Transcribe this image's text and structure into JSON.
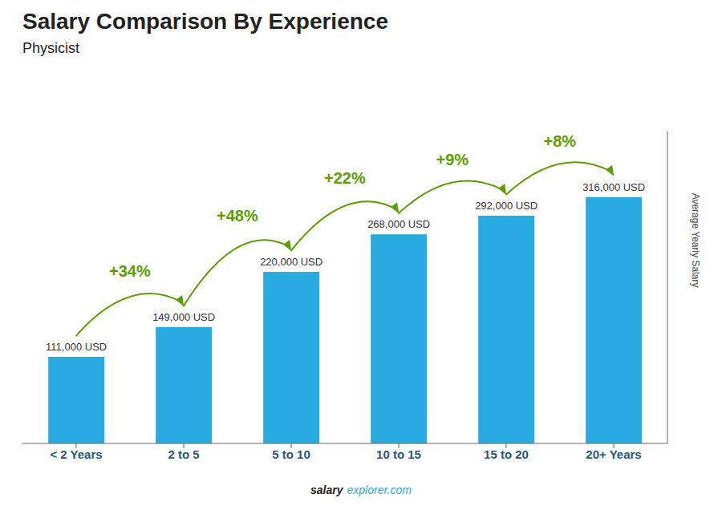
{
  "chart_data": {
    "type": "bar",
    "title": "Salary Comparison By Experience",
    "subtitle": "Physicist",
    "ylabel": "Average Yearly Salary",
    "categories": [
      "< 2 Years",
      "2 to 5",
      "5 to 10",
      "10 to 15",
      "15 to 20",
      "20+ Years"
    ],
    "values": [
      111000,
      149000,
      220000,
      268000,
      292000,
      316000
    ],
    "value_labels": [
      "111,000 USD",
      "149,000 USD",
      "220,000 USD",
      "268,000 USD",
      "292,000 USD",
      "316,000 USD"
    ],
    "data_labels": true,
    "annotations": [
      "+34%",
      "+48%",
      "+22%",
      "+9%",
      "+8%"
    ],
    "footer": [
      "salary",
      "explorer.com"
    ],
    "color": "#29ABE2",
    "ylim": [
      0,
      400000
    ],
    "grid": false,
    "tick_labels": "x"
  }
}
